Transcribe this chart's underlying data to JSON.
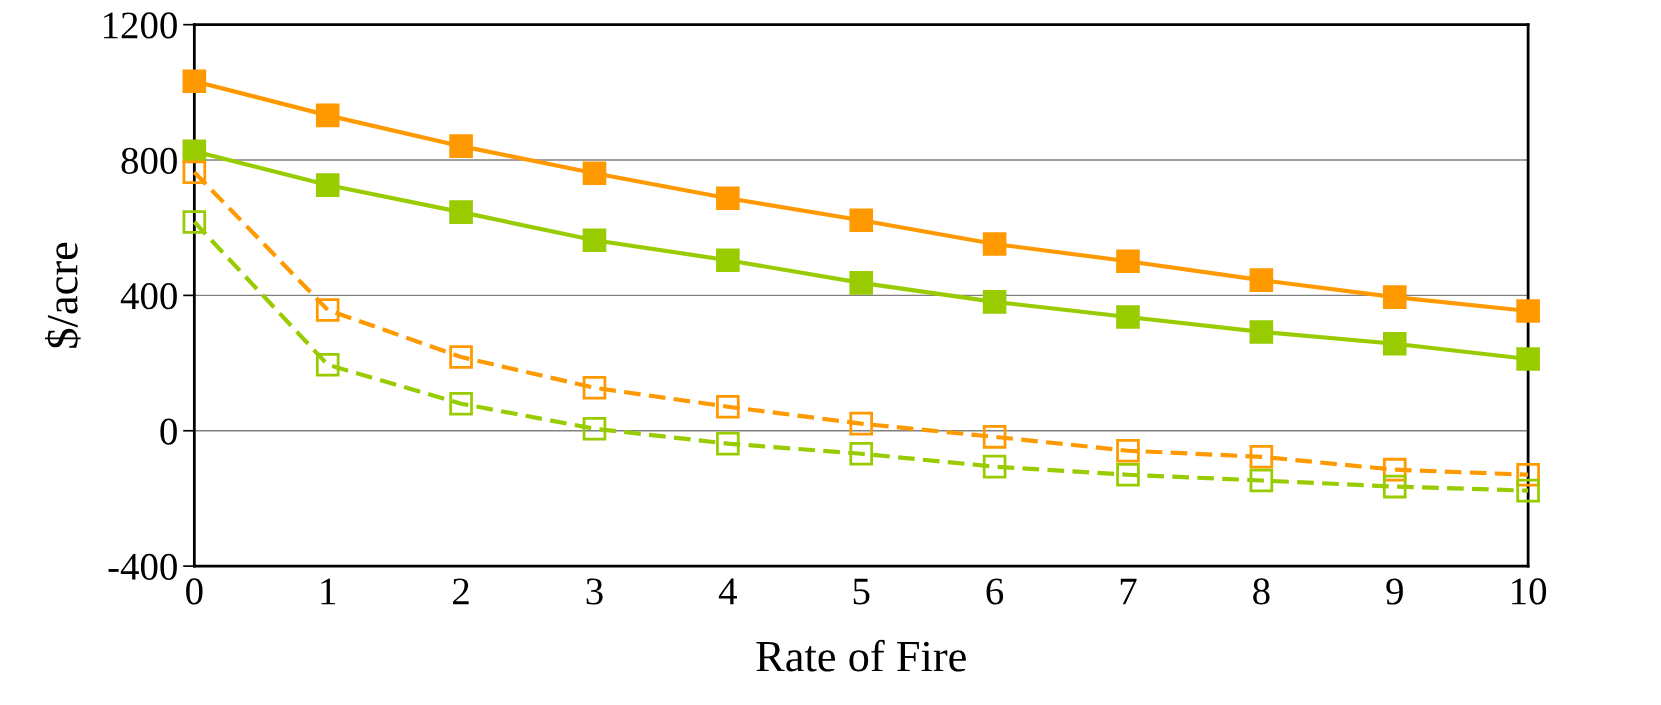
{
  "chart_data": {
    "type": "line",
    "xlabel": "Rate of Fire",
    "ylabel": "$/acre",
    "x": [
      0,
      1,
      2,
      3,
      4,
      5,
      6,
      7,
      8,
      9,
      10
    ],
    "xlim": [
      0,
      10
    ],
    "xticks": [
      0,
      1,
      2,
      3,
      4,
      5,
      6,
      7,
      8,
      9,
      10
    ],
    "ylim": [
      -400,
      1200
    ],
    "yticks": [
      -400,
      0,
      400,
      800,
      1200
    ],
    "grid": "y",
    "series": [
      {
        "color": "#ff9900",
        "marker": "square",
        "line_style": "solid",
        "values": [
          1033,
          932,
          841,
          761,
          687,
          622,
          552,
          501,
          445,
          395,
          354
        ]
      },
      {
        "color": "#99cc00",
        "marker": "square",
        "line_style": "solid",
        "values": [
          826,
          726,
          646,
          563,
          504,
          437,
          381,
          336,
          292,
          257,
          212
        ]
      },
      {
        "color": "#ff9900",
        "marker": "square",
        "line_style": "dashed",
        "values": [
          764,
          357,
          218,
          127,
          71,
          21,
          -18,
          -59,
          -77,
          -115,
          -130
        ]
      },
      {
        "color": "#99cc00",
        "marker": "square",
        "line_style": "dashed",
        "values": [
          617,
          195,
          80,
          6,
          -38,
          -68,
          -106,
          -130,
          -147,
          -165,
          -177
        ]
      }
    ]
  }
}
